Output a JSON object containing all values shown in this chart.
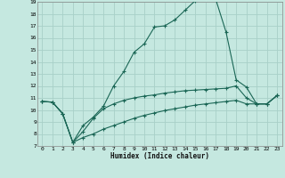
{
  "title": "",
  "xlabel": "Humidex (Indice chaleur)",
  "bg_color": "#c5e8e0",
  "grid_color": "#a8d0c8",
  "line_color": "#1a6655",
  "xlim": [
    -0.5,
    23.5
  ],
  "ylim": [
    7,
    19
  ],
  "xticks": [
    0,
    1,
    2,
    3,
    4,
    5,
    6,
    7,
    8,
    9,
    10,
    11,
    12,
    13,
    14,
    15,
    16,
    17,
    18,
    19,
    20,
    21,
    22,
    23
  ],
  "yticks": [
    7,
    8,
    9,
    10,
    11,
    12,
    13,
    14,
    15,
    16,
    17,
    18,
    19
  ],
  "line1_x": [
    0,
    1,
    2,
    3,
    4,
    5,
    6,
    7,
    8,
    9,
    10,
    11,
    12,
    13,
    14,
    15,
    16,
    17,
    18,
    19,
    20,
    21,
    22,
    23
  ],
  "line1_y": [
    10.7,
    10.65,
    9.7,
    7.3,
    8.7,
    9.4,
    10.3,
    12.0,
    13.2,
    14.8,
    15.5,
    16.9,
    17.0,
    17.5,
    18.3,
    19.1,
    19.3,
    19.2,
    16.5,
    12.5,
    11.9,
    10.5,
    10.5,
    11.2
  ],
  "line2_x": [
    0,
    1,
    2,
    3,
    4,
    5,
    6,
    7,
    8,
    9,
    10,
    11,
    12,
    13,
    14,
    15,
    16,
    17,
    18,
    19,
    20,
    21,
    22,
    23
  ],
  "line2_y": [
    10.7,
    10.65,
    9.7,
    7.3,
    8.2,
    9.3,
    10.1,
    10.5,
    10.8,
    11.0,
    11.15,
    11.25,
    11.4,
    11.5,
    11.6,
    11.65,
    11.7,
    11.75,
    11.8,
    12.0,
    11.0,
    10.5,
    10.5,
    11.2
  ],
  "line3_x": [
    0,
    1,
    2,
    3,
    4,
    5,
    6,
    7,
    8,
    9,
    10,
    11,
    12,
    13,
    14,
    15,
    16,
    17,
    18,
    19,
    20,
    21,
    22,
    23
  ],
  "line3_y": [
    10.7,
    10.65,
    9.7,
    7.3,
    7.7,
    8.0,
    8.4,
    8.7,
    9.0,
    9.3,
    9.55,
    9.75,
    9.95,
    10.1,
    10.25,
    10.4,
    10.5,
    10.6,
    10.7,
    10.8,
    10.5,
    10.5,
    10.5,
    11.2
  ]
}
